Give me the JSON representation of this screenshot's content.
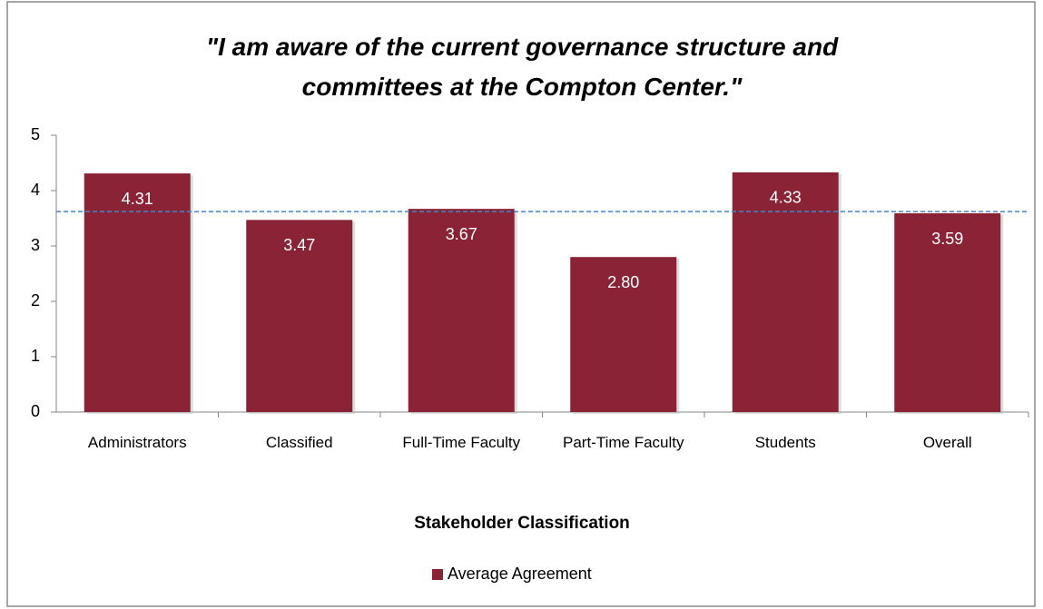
{
  "chart_data": {
    "type": "bar",
    "title": "\"I am aware of the current governance structure and committees at the Compton Center.\"",
    "x_label": "Stakeholder Classification",
    "categories": [
      "Administrators",
      "Classified",
      "Full-Time Faculty",
      "Part-Time Faculty",
      "Students",
      "Overall"
    ],
    "series": [
      {
        "name": "Average Agreement",
        "color": "#8b2336",
        "values": [
          4.31,
          3.47,
          3.67,
          2.8,
          4.33,
          3.59
        ],
        "value_labels": [
          "4.31",
          "3.47",
          "3.67",
          "2.80",
          "4.33",
          "3.59"
        ]
      }
    ],
    "reference_line": 3.62,
    "ylim": [
      0,
      5
    ],
    "yticks": [
      0,
      1,
      2,
      3,
      4,
      5
    ],
    "grid": false,
    "legend": "bottom"
  }
}
